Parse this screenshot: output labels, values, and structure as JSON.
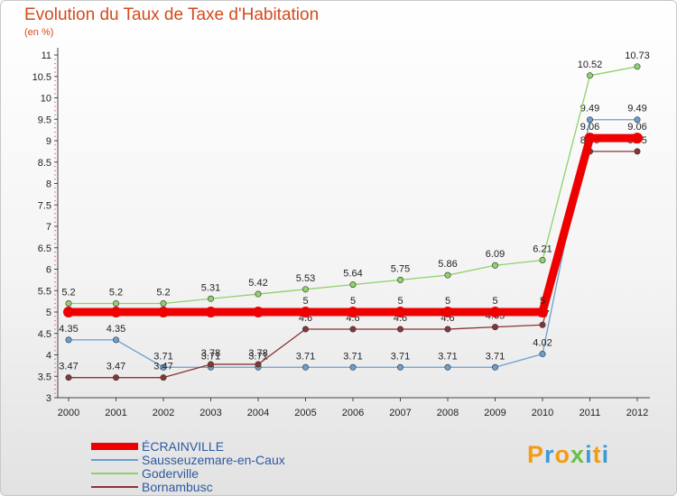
{
  "chart_data": {
    "type": "line",
    "title": "Evolution du Taux de Taxe d'Habitation",
    "subtitle": "(en %)",
    "x": [
      "2000",
      "2001",
      "2002",
      "2003",
      "2004",
      "2005",
      "2006",
      "2007",
      "2008",
      "2009",
      "2010",
      "2011",
      "2012"
    ],
    "ylim": [
      3,
      11
    ],
    "yticks": [
      "3",
      "3.5",
      "4",
      "4.5",
      "5",
      "5.5",
      "6",
      "6.5",
      "7",
      "7.5",
      "8",
      "8.5",
      "9",
      "9.5",
      "10",
      "10.5",
      "11"
    ],
    "grid": false,
    "legend_position": "bottom-left",
    "series": [
      {
        "name": "ÉCRAINVILLE",
        "color": "#ee0000",
        "values": [
          5,
          5,
          5,
          5,
          5,
          5,
          5,
          5,
          5,
          5,
          5,
          9.06,
          9.06
        ],
        "labels": [
          "",
          "",
          "",
          "",
          "",
          "5",
          "5",
          "5",
          "5",
          "5",
          "5",
          "9.06",
          "9.06"
        ]
      },
      {
        "name": "Sausseuzemare-en-Caux",
        "color": "#6a9fd0",
        "values": [
          4.35,
          4.35,
          3.71,
          3.71,
          3.71,
          3.71,
          3.71,
          3.71,
          3.71,
          3.71,
          4.02,
          9.49,
          9.49
        ],
        "labels": [
          "4.35",
          "4.35",
          "3.71",
          "3.71",
          "3.71",
          "3.71",
          "3.71",
          "3.71",
          "3.71",
          "3.71",
          "4.02",
          "9.49",
          "9.49"
        ]
      },
      {
        "name": "Goderville",
        "color": "#8fd16a",
        "values": [
          5.2,
          5.2,
          5.2,
          5.31,
          5.42,
          5.53,
          5.64,
          5.75,
          5.86,
          6.09,
          6.21,
          10.52,
          10.73
        ],
        "labels": [
          "5.2",
          "5.2",
          "5.2",
          "5.31",
          "5.42",
          "5.53",
          "5.64",
          "5.75",
          "5.86",
          "6.09",
          "6.21",
          "10.52",
          "10.73"
        ]
      },
      {
        "name": "Bornambusc",
        "color": "#8a3535",
        "values": [
          3.47,
          3.47,
          3.47,
          3.78,
          3.78,
          4.6,
          4.6,
          4.6,
          4.6,
          4.65,
          4.7,
          8.75,
          8.75
        ],
        "labels": [
          "3.47",
          "3.47",
          "3.47",
          "3.78",
          "3.78",
          "4.6",
          "4.6",
          "4.6",
          "4.6",
          "4.65",
          "4.7",
          "8.75",
          "8.75"
        ]
      }
    ]
  },
  "logo": {
    "letters": [
      "P",
      "r",
      "o",
      "x",
      "i",
      "t",
      "i"
    ]
  }
}
